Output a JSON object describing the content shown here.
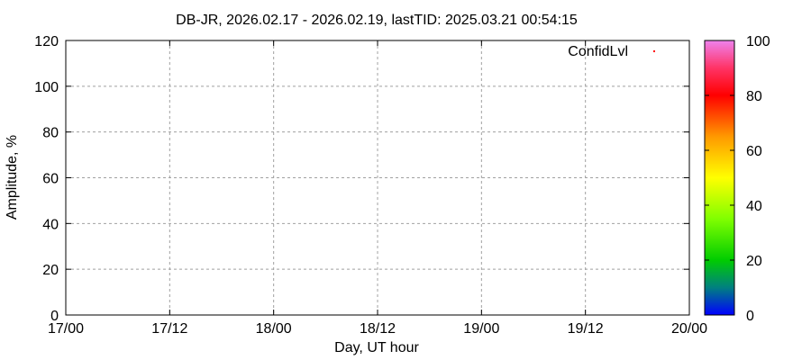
{
  "chart_data": {
    "type": "scatter",
    "title": "DB-JR, 2026.02.17 - 2026.02.19, lastTID: 2025.03.21 00:54:15",
    "xlabel": "Day, UT hour",
    "ylabel": "Amplitude, %",
    "x_ticks": [
      "17/00",
      "17/12",
      "18/00",
      "18/12",
      "19/00",
      "19/12",
      "20/00"
    ],
    "y_ticks": [
      0,
      20,
      40,
      60,
      80,
      100,
      120
    ],
    "ylim": [
      0,
      120
    ],
    "grid": true,
    "legend": {
      "position": "top-right",
      "entries": [
        {
          "name": "ConfidLvl",
          "color": "#ff0000"
        }
      ]
    },
    "series": [
      {
        "name": "ConfidLvl",
        "points": []
      }
    ],
    "colorbar": {
      "range": [
        0,
        100
      ],
      "ticks": [
        0,
        20,
        40,
        60,
        80,
        100
      ],
      "stops": [
        [
          "0",
          "#0000ff"
        ],
        [
          "10",
          "#008080"
        ],
        [
          "20",
          "#00cc00"
        ],
        [
          "35",
          "#80ff00"
        ],
        [
          "50",
          "#ffff00"
        ],
        [
          "65",
          "#ff9900"
        ],
        [
          "80",
          "#ff0000"
        ],
        [
          "90",
          "#ff3366"
        ],
        [
          "100",
          "#ee82ee"
        ]
      ]
    }
  }
}
